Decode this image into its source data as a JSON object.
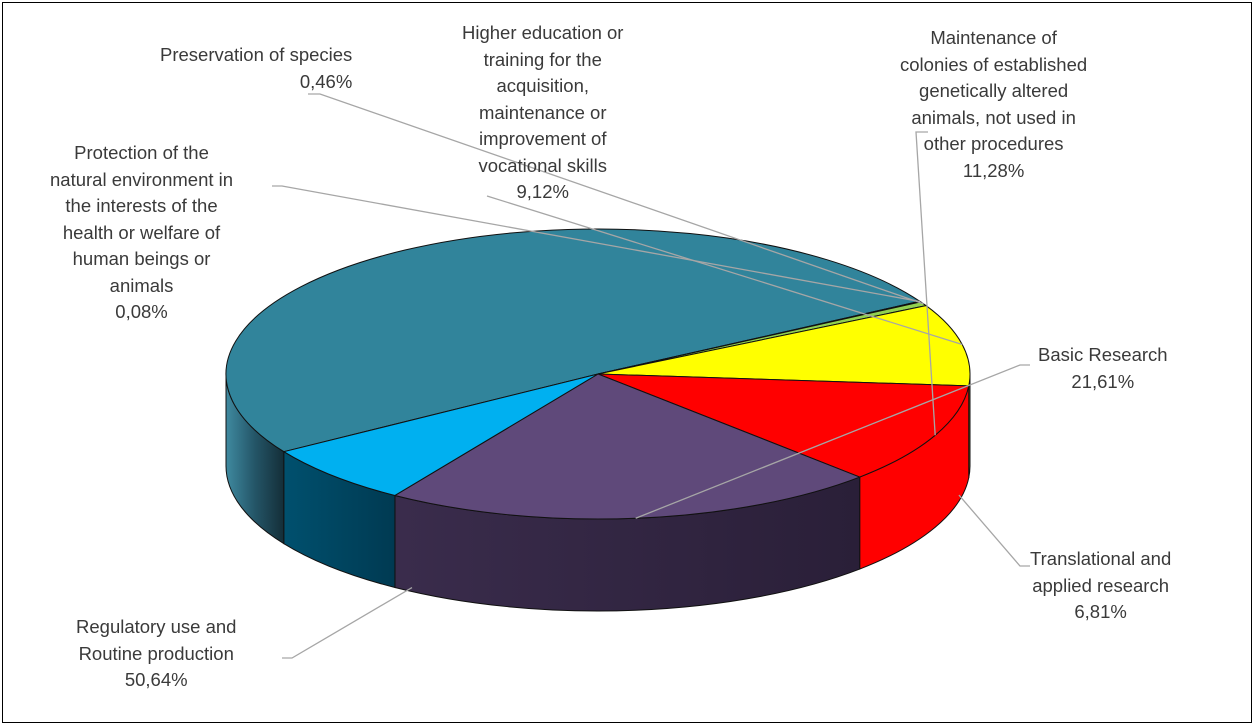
{
  "chart_data": {
    "type": "pie",
    "style": "3d",
    "legend": "none",
    "slices": [
      {
        "key": "reg",
        "label_lines": [
          "Regulatory use and",
          "Routine production"
        ],
        "value_label": "50,64%",
        "value": 50.64,
        "color": "#31849B"
      },
      {
        "key": "prot",
        "label_lines": [
          "Protection of the",
          "natural environment in",
          "the interests of the",
          "health or welfare of",
          "human beings or",
          "animals"
        ],
        "value_label": "0,08%",
        "value": 0.08,
        "color": "#9BBB59"
      },
      {
        "key": "pres",
        "label_lines": [
          "Preservation of species"
        ],
        "value_label": "0,46%",
        "value": 0.46,
        "color": "#92D050"
      },
      {
        "key": "edu",
        "label_lines": [
          "Higher education or",
          "training for the",
          "acquisition,",
          "maintenance or",
          "improvement of",
          "vocational skills"
        ],
        "value_label": "9,12%",
        "value": 9.12,
        "color": "#FFFF00"
      },
      {
        "key": "colonies",
        "label_lines": [
          "Maintenance of",
          "colonies of established",
          "genetically altered",
          "animals, not used in",
          "other procedures"
        ],
        "value_label": "11,28%",
        "value": 11.28,
        "color": "#FF0000"
      },
      {
        "key": "basic",
        "label_lines": [
          "Basic Research"
        ],
        "value_label": "21,61%",
        "value": 21.61,
        "color": "#5F497A"
      },
      {
        "key": "trans",
        "label_lines": [
          "Translational and",
          "applied research"
        ],
        "value_label": "6,81%",
        "value": 6.81,
        "color": "#00B0F0"
      }
    ]
  }
}
